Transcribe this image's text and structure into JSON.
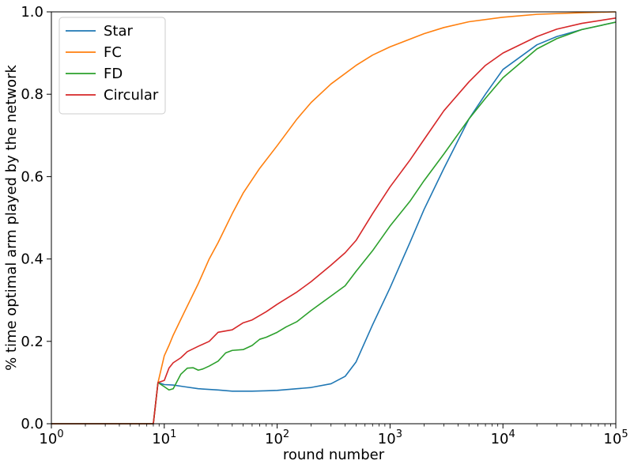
{
  "chart_data": {
    "type": "line",
    "title": "",
    "xlabel": "round number",
    "ylabel": "% time optimal arm played by the network",
    "xscale": "log",
    "xlim": [
      1,
      100000
    ],
    "ylim": [
      0,
      1.0
    ],
    "x_ticks": [
      {
        "value": 1,
        "base": "10",
        "exp": "0"
      },
      {
        "value": 10,
        "base": "10",
        "exp": "1"
      },
      {
        "value": 100,
        "base": "10",
        "exp": "2"
      },
      {
        "value": 1000,
        "base": "10",
        "exp": "3"
      },
      {
        "value": 10000,
        "base": "10",
        "exp": "4"
      },
      {
        "value": 100000,
        "base": "10",
        "exp": "5"
      }
    ],
    "y_ticks": [
      {
        "value": 0.0,
        "label": "0.0"
      },
      {
        "value": 0.2,
        "label": "0.2"
      },
      {
        "value": 0.4,
        "label": "0.4"
      },
      {
        "value": 0.6,
        "label": "0.6"
      },
      {
        "value": 0.8,
        "label": "0.8"
      },
      {
        "value": 1.0,
        "label": "1.0"
      }
    ],
    "grid": false,
    "legend_position": "top-left",
    "series": [
      {
        "name": "Star",
        "color": "#1f77b4",
        "points": [
          [
            1,
            0
          ],
          [
            8,
            0
          ],
          [
            8.8,
            0.1
          ],
          [
            10,
            0.095
          ],
          [
            12,
            0.094
          ],
          [
            15,
            0.09
          ],
          [
            20,
            0.085
          ],
          [
            30,
            0.082
          ],
          [
            40,
            0.079
          ],
          [
            60,
            0.079
          ],
          [
            80,
            0.08
          ],
          [
            100,
            0.081
          ],
          [
            150,
            0.085
          ],
          [
            200,
            0.088
          ],
          [
            300,
            0.097
          ],
          [
            400,
            0.115
          ],
          [
            500,
            0.15
          ],
          [
            700,
            0.24
          ],
          [
            1000,
            0.33
          ],
          [
            1500,
            0.44
          ],
          [
            2000,
            0.52
          ],
          [
            3000,
            0.62
          ],
          [
            5000,
            0.74
          ],
          [
            7000,
            0.8
          ],
          [
            10000,
            0.86
          ],
          [
            20000,
            0.92
          ],
          [
            30000,
            0.94
          ],
          [
            50000,
            0.957
          ],
          [
            100000,
            0.975
          ]
        ]
      },
      {
        "name": "FC",
        "color": "#ff7f0e",
        "points": [
          [
            1,
            0
          ],
          [
            8,
            0
          ],
          [
            8.8,
            0.1
          ],
          [
            10,
            0.165
          ],
          [
            11,
            0.19
          ],
          [
            12,
            0.215
          ],
          [
            15,
            0.27
          ],
          [
            20,
            0.34
          ],
          [
            25,
            0.4
          ],
          [
            30,
            0.44
          ],
          [
            40,
            0.51
          ],
          [
            50,
            0.56
          ],
          [
            70,
            0.62
          ],
          [
            100,
            0.675
          ],
          [
            150,
            0.74
          ],
          [
            200,
            0.78
          ],
          [
            300,
            0.825
          ],
          [
            500,
            0.87
          ],
          [
            700,
            0.895
          ],
          [
            1000,
            0.915
          ],
          [
            2000,
            0.947
          ],
          [
            3000,
            0.962
          ],
          [
            5000,
            0.976
          ],
          [
            10000,
            0.987
          ],
          [
            20000,
            0.994
          ],
          [
            50000,
            0.998
          ],
          [
            100000,
            1.0
          ]
        ]
      },
      {
        "name": "FD",
        "color": "#2ca02c",
        "points": [
          [
            1,
            0
          ],
          [
            8,
            0
          ],
          [
            8.8,
            0.1
          ],
          [
            10,
            0.09
          ],
          [
            11,
            0.082
          ],
          [
            12,
            0.085
          ],
          [
            14,
            0.12
          ],
          [
            16,
            0.135
          ],
          [
            18,
            0.136
          ],
          [
            20,
            0.13
          ],
          [
            22,
            0.133
          ],
          [
            25,
            0.14
          ],
          [
            30,
            0.152
          ],
          [
            35,
            0.172
          ],
          [
            40,
            0.178
          ],
          [
            50,
            0.18
          ],
          [
            60,
            0.19
          ],
          [
            70,
            0.205
          ],
          [
            80,
            0.21
          ],
          [
            100,
            0.222
          ],
          [
            120,
            0.235
          ],
          [
            150,
            0.248
          ],
          [
            200,
            0.275
          ],
          [
            300,
            0.31
          ],
          [
            400,
            0.335
          ],
          [
            500,
            0.37
          ],
          [
            700,
            0.42
          ],
          [
            1000,
            0.48
          ],
          [
            1500,
            0.54
          ],
          [
            2000,
            0.59
          ],
          [
            3000,
            0.655
          ],
          [
            5000,
            0.74
          ],
          [
            7000,
            0.79
          ],
          [
            10000,
            0.84
          ],
          [
            20000,
            0.91
          ],
          [
            30000,
            0.935
          ],
          [
            50000,
            0.957
          ],
          [
            100000,
            0.975
          ]
        ]
      },
      {
        "name": "Circular",
        "color": "#d62728",
        "points": [
          [
            1,
            0
          ],
          [
            8,
            0
          ],
          [
            8.8,
            0.1
          ],
          [
            10,
            0.105
          ],
          [
            11,
            0.135
          ],
          [
            12,
            0.148
          ],
          [
            14,
            0.16
          ],
          [
            16,
            0.175
          ],
          [
            20,
            0.188
          ],
          [
            25,
            0.2
          ],
          [
            30,
            0.222
          ],
          [
            40,
            0.228
          ],
          [
            50,
            0.245
          ],
          [
            60,
            0.252
          ],
          [
            80,
            0.272
          ],
          [
            100,
            0.29
          ],
          [
            150,
            0.32
          ],
          [
            200,
            0.345
          ],
          [
            300,
            0.385
          ],
          [
            400,
            0.415
          ],
          [
            500,
            0.445
          ],
          [
            700,
            0.51
          ],
          [
            1000,
            0.575
          ],
          [
            1500,
            0.64
          ],
          [
            2000,
            0.69
          ],
          [
            3000,
            0.76
          ],
          [
            5000,
            0.83
          ],
          [
            7000,
            0.87
          ],
          [
            10000,
            0.9
          ],
          [
            20000,
            0.94
          ],
          [
            30000,
            0.958
          ],
          [
            50000,
            0.972
          ],
          [
            100000,
            0.985
          ]
        ]
      }
    ]
  }
}
